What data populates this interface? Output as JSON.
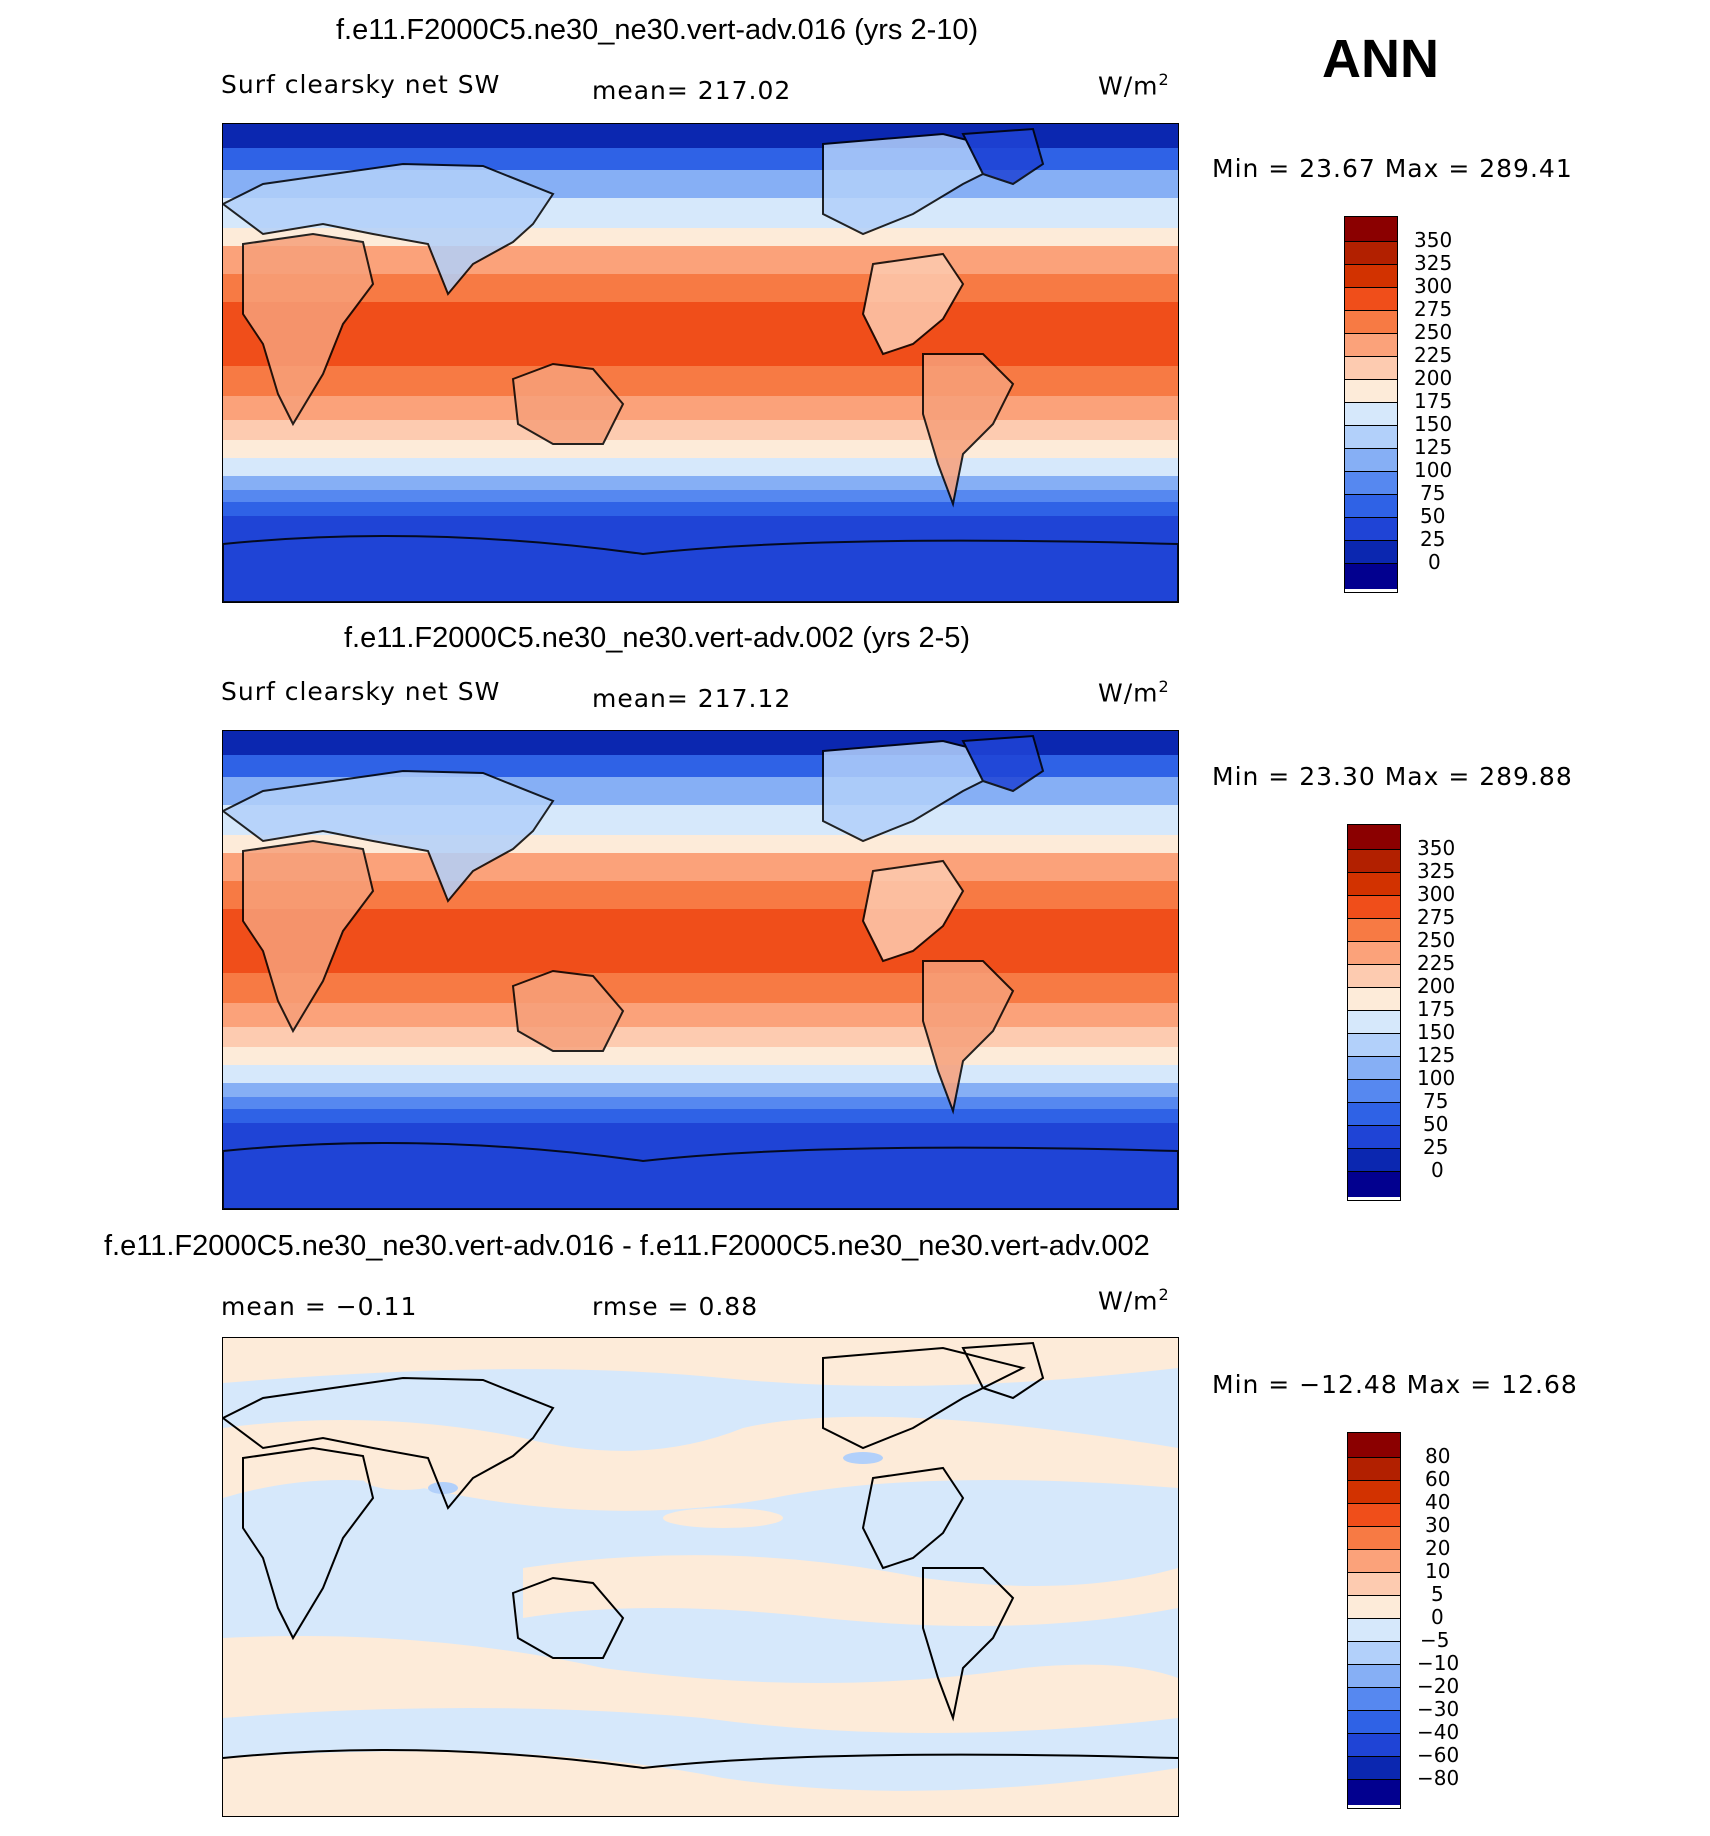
{
  "season": "ANN",
  "levels": [
    "350",
    "325",
    "300",
    "275",
    "250",
    "225",
    "200",
    "175",
    "150",
    "125",
    "100",
    "75",
    "50",
    "25",
    "0"
  ],
  "diff_levels": [
    "80",
    "60",
    "40",
    "30",
    "20",
    "10",
    "5",
    "0",
    "−5",
    "−10",
    "−20",
    "−30",
    "−40",
    "−60",
    "−80"
  ],
  "colors": [
    "#8b0000",
    "#b22000",
    "#d23200",
    "#f04e1a",
    "#f77a44",
    "#fba27a",
    "#fdcbb0",
    "#fdebd9",
    "#d6e8fb",
    "#b2d0fa",
    "#86aff5",
    "#5688f0",
    "#2f62e6",
    "#1f44d6",
    "#0b27b0",
    "#02008f"
  ],
  "panels": [
    {
      "title": "f.e11.F2000C5.ne30_ne30.vert-adv.016 (yrs 2-10)",
      "variable": "Surf clearsky net SW",
      "stat1": "mean= 217.02",
      "stat2": "",
      "unit": "W/m",
      "unit_exp": "2",
      "minmax": "Min =   23.67  Max  =  289.41"
    },
    {
      "title": "f.e11.F2000C5.ne30_ne30.vert-adv.002 (yrs 2-5)",
      "variable": "Surf clearsky net SW",
      "stat1": "mean= 217.12",
      "stat2": "",
      "unit": "W/m",
      "unit_exp": "2",
      "minmax": "Min =   23.30  Max  =  289.88"
    },
    {
      "title": "f.e11.F2000C5.ne30_ne30.vert-adv.016 - f.e11.F2000C5.ne30_ne30.vert-adv.002",
      "variable": "mean =   −0.11",
      "stat1": "rmse =    0.88",
      "stat2": "",
      "unit": "W/m",
      "unit_exp": "2",
      "minmax": "Min = −12.48  Max  =   12.68"
    }
  ]
}
